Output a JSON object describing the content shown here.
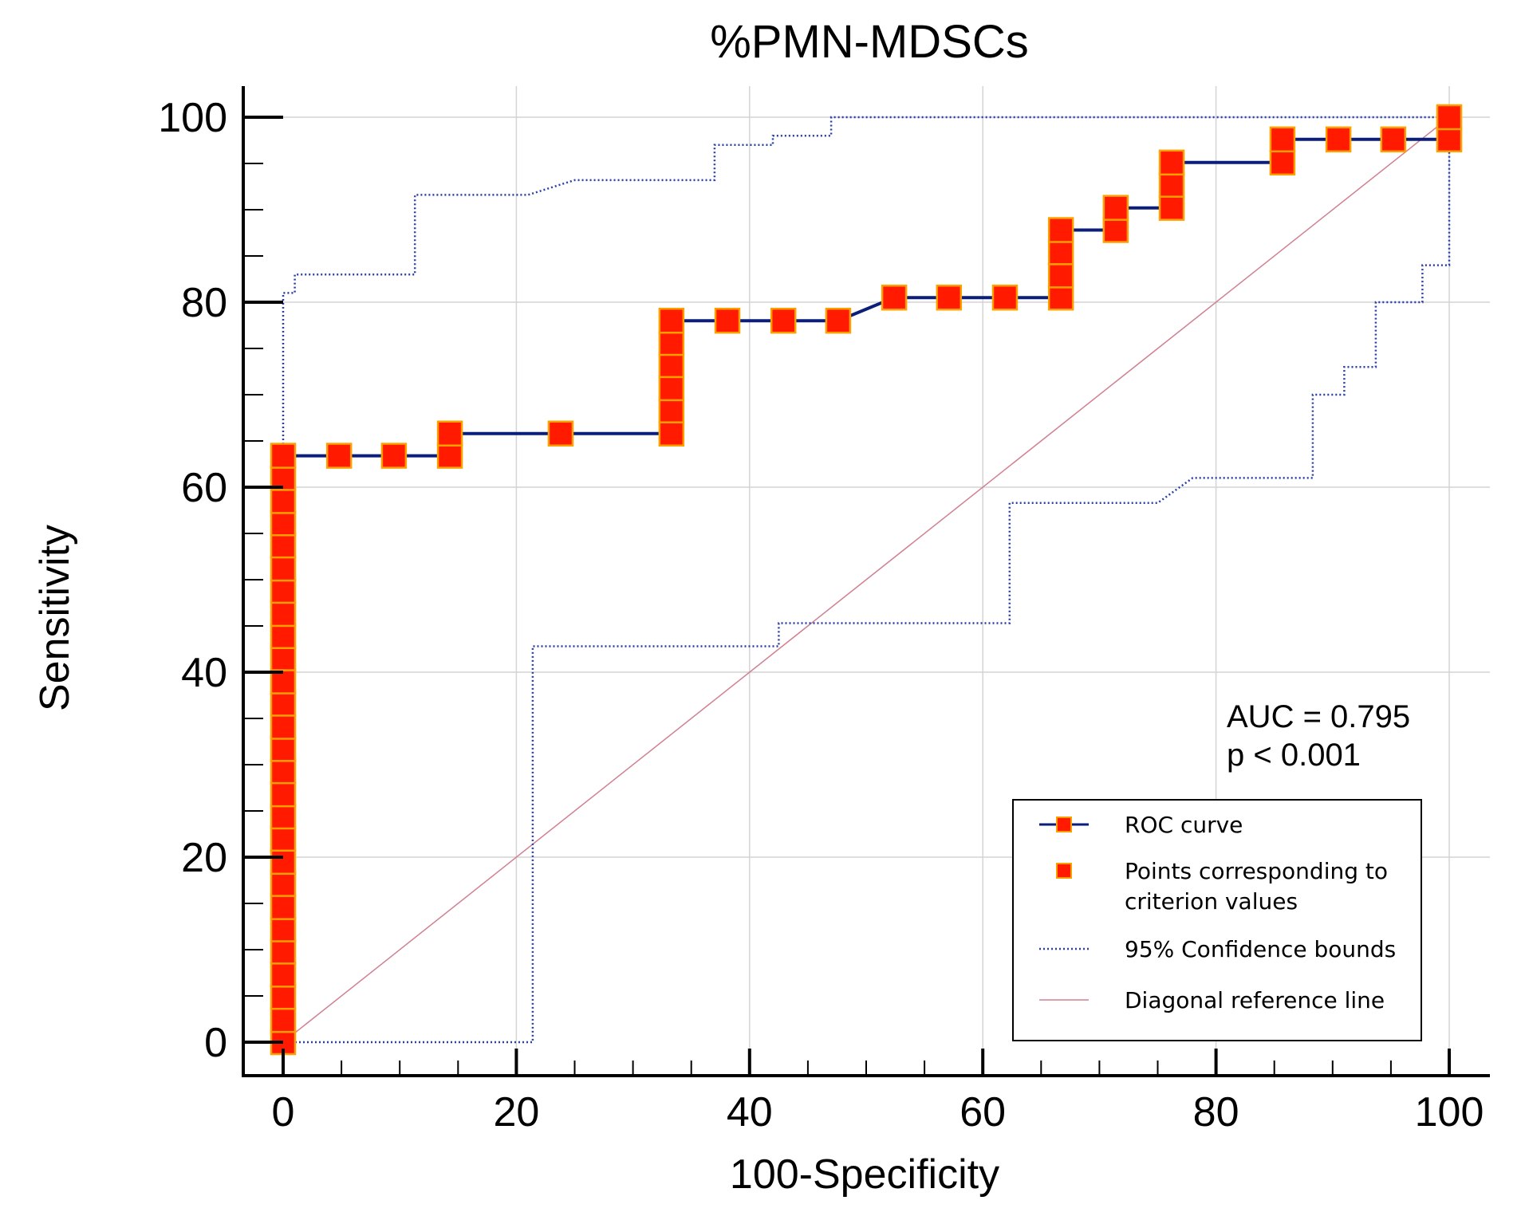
{
  "chart_data": {
    "type": "line",
    "title": "%PMN-MDSCs",
    "xlabel": "100-Specificity",
    "ylabel": "Sensitivity",
    "xlim": [
      0,
      100
    ],
    "ylim": [
      0,
      100
    ],
    "x_ticks": [
      "0",
      "20",
      "40",
      "60",
      "80",
      "100"
    ],
    "y_ticks": [
      "0",
      "20",
      "40",
      "60",
      "80",
      "100"
    ],
    "grid": true,
    "annotation": {
      "auc": "AUC = 0.795",
      "p": "p < 0.001"
    },
    "legend": {
      "position": "bottom-right",
      "entries": [
        "ROC curve",
        "Points corresponding to criterion values",
        "95% Confidence bounds",
        "Diagonal reference line"
      ]
    },
    "series": [
      {
        "name": "ROC curve",
        "style": "solid line with square markers",
        "points": [
          [
            0,
            0
          ],
          [
            0,
            63.4
          ],
          [
            4.8,
            63.4
          ],
          [
            9.5,
            63.4
          ],
          [
            14.3,
            63.4
          ],
          [
            14.3,
            65.8
          ],
          [
            23.8,
            65.8
          ],
          [
            33.3,
            65.8
          ],
          [
            33.3,
            78
          ],
          [
            38.1,
            78
          ],
          [
            42.9,
            78
          ],
          [
            47.6,
            78
          ],
          [
            52.4,
            80.5
          ],
          [
            57.1,
            80.5
          ],
          [
            61.9,
            80.5
          ],
          [
            66.7,
            80.5
          ],
          [
            66.7,
            87.8
          ],
          [
            71.4,
            87.8
          ],
          [
            71.4,
            90.2
          ],
          [
            76.2,
            90.2
          ],
          [
            76.2,
            95.1
          ],
          [
            85.7,
            95.1
          ],
          [
            85.7,
            97.6
          ],
          [
            90.5,
            97.6
          ],
          [
            95.2,
            97.6
          ],
          [
            100,
            97.6
          ],
          [
            100,
            100
          ]
        ],
        "criterion_points": [
          [
            0,
            0
          ],
          [
            0,
            2.4
          ],
          [
            0,
            4.9
          ],
          [
            0,
            7.3
          ],
          [
            0,
            9.8
          ],
          [
            0,
            12.2
          ],
          [
            0,
            14.6
          ],
          [
            0,
            17.1
          ],
          [
            0,
            19.5
          ],
          [
            0,
            22
          ],
          [
            0,
            24.4
          ],
          [
            0,
            26.8
          ],
          [
            0,
            29.3
          ],
          [
            0,
            31.7
          ],
          [
            0,
            34.1
          ],
          [
            0,
            36.6
          ],
          [
            0,
            39
          ],
          [
            0,
            41.5
          ],
          [
            0,
            43.9
          ],
          [
            0,
            46.3
          ],
          [
            0,
            48.8
          ],
          [
            0,
            51.2
          ],
          [
            0,
            53.7
          ],
          [
            0,
            56.1
          ],
          [
            0,
            58.5
          ],
          [
            0,
            61
          ],
          [
            0,
            63.4
          ],
          [
            4.8,
            63.4
          ],
          [
            9.5,
            63.4
          ],
          [
            14.3,
            63.4
          ],
          [
            14.3,
            65.8
          ],
          [
            23.8,
            65.8
          ],
          [
            33.3,
            65.8
          ],
          [
            33.3,
            68.3
          ],
          [
            33.3,
            70.7
          ],
          [
            33.3,
            73.2
          ],
          [
            33.3,
            75.6
          ],
          [
            33.3,
            78
          ],
          [
            38.1,
            78
          ],
          [
            42.9,
            78
          ],
          [
            47.6,
            78
          ],
          [
            52.4,
            80.5
          ],
          [
            57.1,
            80.5
          ],
          [
            61.9,
            80.5
          ],
          [
            66.7,
            80.5
          ],
          [
            66.7,
            82.9
          ],
          [
            66.7,
            85.4
          ],
          [
            66.7,
            87.8
          ],
          [
            71.4,
            87.8
          ],
          [
            71.4,
            90.2
          ],
          [
            76.2,
            90.2
          ],
          [
            76.2,
            92.7
          ],
          [
            76.2,
            95.1
          ],
          [
            85.7,
            95.1
          ],
          [
            85.7,
            97.6
          ],
          [
            90.5,
            97.6
          ],
          [
            95.2,
            97.6
          ],
          [
            100,
            97.6
          ],
          [
            100,
            100
          ]
        ]
      },
      {
        "name": "95% Confidence bounds (upper)",
        "style": "dotted step",
        "points": [
          [
            0,
            0
          ],
          [
            0,
            81
          ],
          [
            1,
            81
          ],
          [
            1,
            83
          ],
          [
            11.3,
            83
          ],
          [
            11.3,
            91.6
          ],
          [
            21,
            91.6
          ],
          [
            25,
            93.2
          ],
          [
            37,
            93.2
          ],
          [
            37,
            97
          ],
          [
            42,
            97
          ],
          [
            42,
            98
          ],
          [
            47,
            98
          ],
          [
            47,
            100
          ],
          [
            100,
            100
          ]
        ]
      },
      {
        "name": "95% Confidence bounds (lower)",
        "style": "dotted step",
        "points": [
          [
            0,
            0
          ],
          [
            21.4,
            0
          ],
          [
            21.4,
            42.8
          ],
          [
            42.5,
            42.8
          ],
          [
            42.5,
            45.3
          ],
          [
            62.3,
            45.3
          ],
          [
            62.3,
            58.3
          ],
          [
            75,
            58.3
          ],
          [
            78,
            61
          ],
          [
            88.3,
            61
          ],
          [
            88.3,
            70
          ],
          [
            91,
            70
          ],
          [
            91,
            73
          ],
          [
            93.7,
            73
          ],
          [
            93.7,
            80
          ],
          [
            97.7,
            80
          ],
          [
            97.7,
            84
          ],
          [
            100,
            84
          ],
          [
            100,
            100
          ]
        ]
      },
      {
        "name": "Diagonal reference line",
        "style": "thin line",
        "points": [
          [
            0,
            0
          ],
          [
            100,
            100
          ]
        ]
      }
    ]
  }
}
